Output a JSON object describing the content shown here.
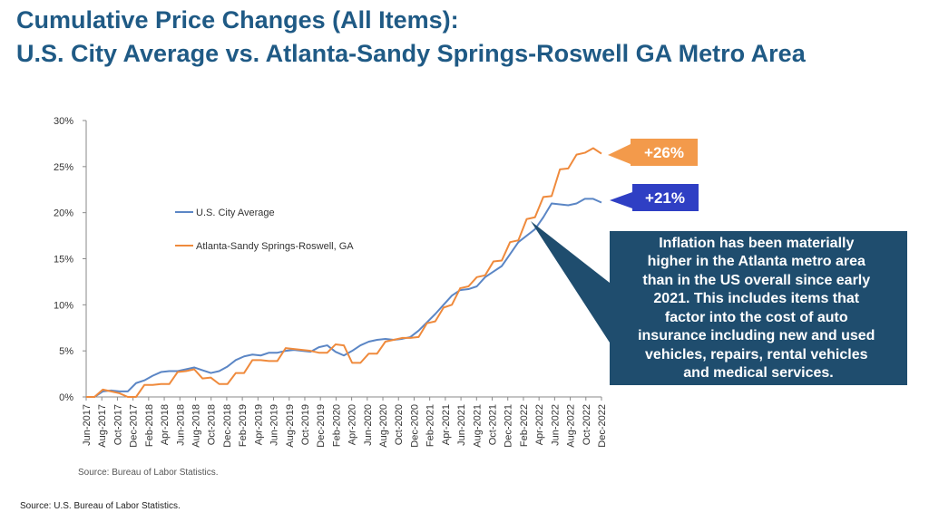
{
  "page": {
    "title_line1": "Cumulative Price Changes (All Items):",
    "title_line2": "U.S. City Average vs. Atlanta-Sandy Springs-Roswell GA Metro Area",
    "footer_source": "Source: U.S. Bureau of Labor Statistics."
  },
  "chart_data": {
    "type": "line",
    "title": "",
    "xlabel": "",
    "ylabel": "",
    "ylim": [
      0,
      30
    ],
    "yticks": [
      0,
      5,
      10,
      15,
      20,
      25,
      30
    ],
    "ytick_labels": [
      "0%",
      "5%",
      "10%",
      "15%",
      "20%",
      "25%",
      "30%"
    ],
    "x_tick_labels": [
      "Jun-2017",
      "Aug-2017",
      "Oct-2017",
      "Dec-2017",
      "Feb-2018",
      "Apr-2018",
      "Jun-2018",
      "Aug-2018",
      "Oct-2018",
      "Dec-2018",
      "Feb-2019",
      "Apr-2019",
      "Jun-2019",
      "Aug-2019",
      "Oct-2019",
      "Dec-2019",
      "Feb-2020",
      "Apr-2020",
      "Jun-2020",
      "Aug-2020",
      "Oct-2020",
      "Dec-2020",
      "Feb-2021",
      "Apr-2021",
      "Jun-2021",
      "Aug-2021",
      "Oct-2021",
      "Dec-2021",
      "Feb-2022",
      "Apr-2022",
      "Jun-2022",
      "Aug-2022",
      "Oct-2022",
      "Dec-2022"
    ],
    "x_start": "Jun-2017",
    "x_end": "Dec-2022",
    "grid": false,
    "legend_position": "upper-left",
    "series": [
      {
        "name": "U.S. City Average",
        "color": "#5b86c5",
        "values": [
          0.0,
          0.0,
          0.6,
          0.7,
          0.6,
          0.6,
          1.5,
          1.8,
          2.3,
          2.7,
          2.8,
          2.8,
          3.0,
          3.2,
          2.9,
          2.6,
          2.8,
          3.3,
          4.0,
          4.4,
          4.6,
          4.5,
          4.8,
          4.8,
          5.0,
          5.1,
          5.0,
          4.9,
          5.4,
          5.6,
          4.9,
          4.5,
          5.0,
          5.6,
          6.0,
          6.2,
          6.3,
          6.2,
          6.3,
          6.5,
          7.2,
          8.1,
          9.0,
          10.0,
          11.0,
          11.6,
          11.7,
          12.0,
          13.0,
          13.6,
          14.2,
          15.5,
          16.8,
          17.5,
          18.2,
          19.5,
          21.0,
          20.9,
          20.8,
          21.0,
          21.5,
          21.5,
          21.1
        ]
      },
      {
        "name": "Atlanta-Sandy Springs-Roswell, GA",
        "color": "#ef8a3c",
        "values": [
          0.0,
          0.0,
          0.8,
          0.6,
          0.4,
          0.0,
          0.0,
          1.3,
          1.3,
          1.4,
          1.4,
          2.7,
          2.8,
          3.0,
          2.0,
          2.1,
          1.4,
          1.4,
          2.6,
          2.6,
          4.0,
          4.0,
          3.9,
          3.9,
          5.3,
          5.2,
          5.1,
          5.0,
          4.8,
          4.8,
          5.7,
          5.6,
          3.7,
          3.7,
          4.7,
          4.7,
          6.0,
          6.2,
          6.4,
          6.4,
          6.5,
          8.0,
          8.2,
          9.7,
          10.0,
          11.8,
          12.0,
          13.0,
          13.2,
          14.7,
          14.8,
          16.8,
          17.0,
          19.3,
          19.5,
          21.7,
          21.8,
          24.7,
          24.8,
          26.3,
          26.5,
          27.0,
          26.4
        ]
      }
    ],
    "end_labels": [
      "+26%",
      "+21%"
    ],
    "source": "Source: Bureau of Labor Statistics."
  },
  "callout": {
    "lines": [
      "Inflation has been materially",
      "higher in the Atlanta metro area",
      "than in the US overall since early",
      "2021.  This includes items that",
      "factor into the cost of auto",
      "insurance including new and used",
      "vehicles, repairs, rental vehicles",
      "and medical services."
    ],
    "background": "#1f4d6e"
  },
  "badges": {
    "atlanta": {
      "label": "+26%",
      "color": "#f39a4b"
    },
    "us": {
      "label": "+21%",
      "color": "#2f3fc4"
    }
  }
}
